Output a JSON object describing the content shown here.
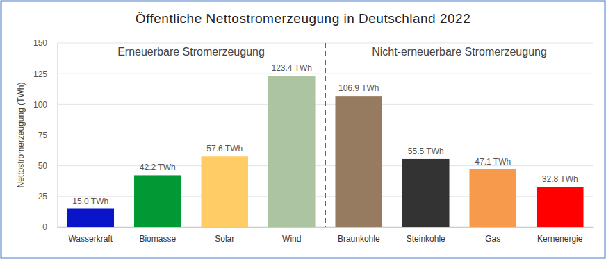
{
  "chart_data": {
    "type": "bar",
    "title": "Öffentliche Nettostromerzeugung in Deutschland 2022",
    "y_label": "Nettostromerzeugung (TWh)",
    "annotations": [
      "Erneuerbare Stromerzeugung",
      "Nicht-erneuerbare Stromerzeugung"
    ],
    "categories": [
      "Wasserkraft",
      "Biomasse",
      "Solar",
      "Wind",
      "Braunkohle",
      "Steinkohle",
      "Gas",
      "Kernenergie"
    ],
    "values": [
      15.0,
      42.2,
      57.6,
      123.4,
      106.9,
      55.5,
      47.1,
      32.8
    ],
    "value_labels": [
      "15.0 TWh",
      "42.2 TWh",
      "57.6 TWh",
      "123.4 TWh",
      "106.9 TWh",
      "55.5 TWh",
      "47.1 TWh",
      "32.8 TWh"
    ],
    "colors": [
      "#0a14c8",
      "#009933",
      "#ffcc66",
      "#adc4a0",
      "#967b61",
      "#333333",
      "#f79a4c",
      "#ff0000"
    ],
    "ylim": [
      0,
      150
    ],
    "yticks": [
      0,
      25,
      50,
      75,
      100,
      125,
      150
    ],
    "grid": true,
    "data_labels": true
  }
}
